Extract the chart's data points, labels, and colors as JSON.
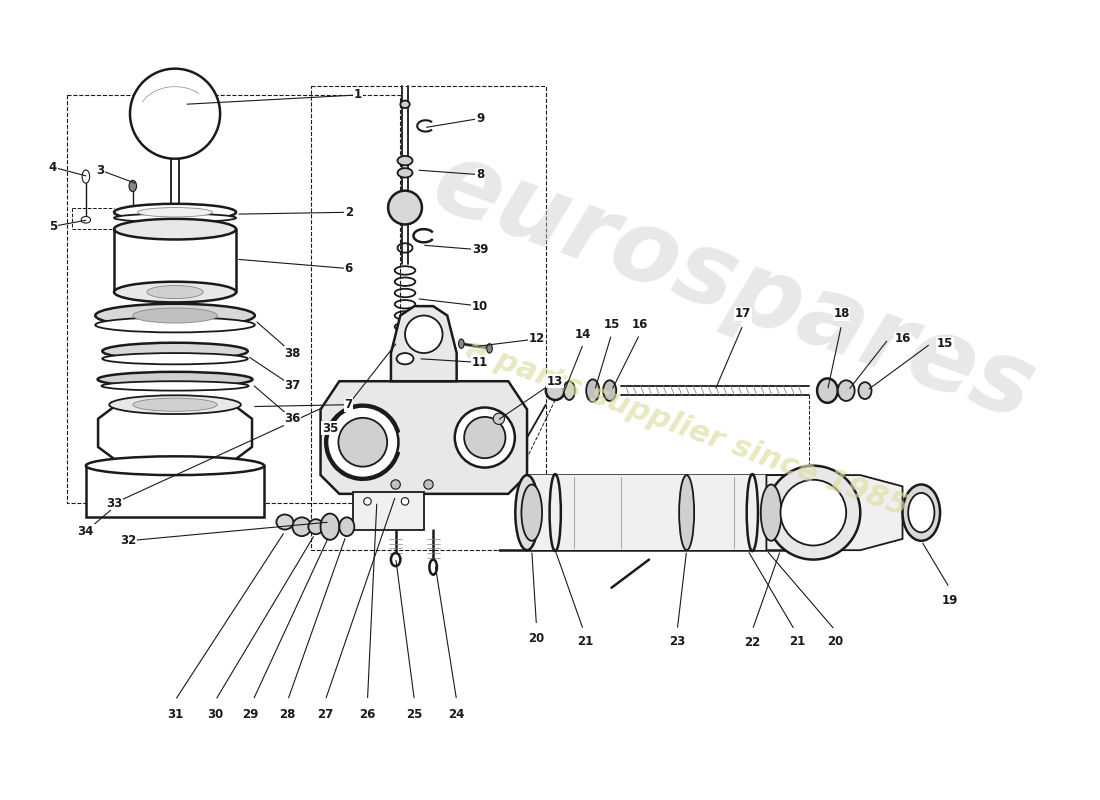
{
  "background_color": "#ffffff",
  "line_color": "#1a1a1a",
  "watermark_color1": "#cccccc",
  "watermark_color2": "#e8e8c0",
  "figsize": [
    11.0,
    8.0
  ],
  "dpi": 100
}
